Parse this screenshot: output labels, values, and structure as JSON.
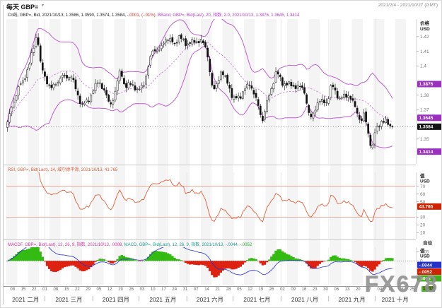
{
  "header": {
    "title": "每天 GBP=",
    "title_marker": "▾",
    "date_range": "2021/2/4 - 2021/10/27 (GMT)"
  },
  "watermark": "FX678",
  "legend_main": {
    "candle": "Cn线, GBP=, Bid, 2021/10/13, 1.3586, 1.3590, 1.3574, 1.3584,",
    "change": "-.0001, (-.01%),",
    "bband": "BBand, GBP=, Bid(Last), 20, 指数, 2.0, 2021/10/13, 1.3876, 1.3645, 1.3414"
  },
  "legend_rsi": "RSI, GBP=, Bid(Last), 14, 威尔德平滑, 2021/10/13, 43.765",
  "legend_macd": {
    "part1": "MACDF, GBP=, Bid(Last), 12, 26, 9, 指数, 2021/10/13, .0008,",
    "part2": "MACD, GBP=, Bid(Last), 12, 26, 9, 指数, 2021/10/13, -.0044,",
    "part3": "-.0052"
  },
  "axes": {
    "main": {
      "unit": [
        "价格",
        "USD"
      ],
      "ticks": [
        1.42,
        1.41,
        1.4,
        1.38,
        1.37,
        1.35
      ],
      "badges": [
        {
          "v": 1.3876,
          "label": "1.3876",
          "bg": "purple"
        },
        {
          "v": 1.3645,
          "label": "1.3645",
          "bg": "purple"
        },
        {
          "v": 1.3584,
          "label": "1.3584",
          "bg": "black"
        },
        {
          "v": 1.3414,
          "label": "1.3414",
          "bg": "purple"
        }
      ],
      "ylim": [
        1.333,
        1.432
      ],
      "last_dotted": 1.3584
    },
    "rsi": {
      "unit": [
        "值",
        "USD"
      ],
      "ticks": [
        70,
        60,
        50,
        30,
        20,
        10
      ],
      "badge": {
        "v": 43.765,
        "label": "43.765",
        "bg": "red"
      },
      "levels": [
        70,
        30
      ],
      "ylim": [
        2,
        88
      ]
    },
    "macd": {
      "unit": [
        "值",
        "USD"
      ],
      "scale_label": "自动",
      "ticks": [
        {
          "v": 0.005,
          "label": ".005"
        },
        {
          "v": 0,
          "label": "0"
        }
      ],
      "badges": [
        {
          "label": "-.0044",
          "bg": "blue"
        },
        {
          "label": "-.0052",
          "bg": "red"
        },
        {
          "label": ".0008",
          "bg": "green"
        }
      ],
      "ylim": [
        -0.0135,
        0.0075
      ]
    },
    "x": {
      "axis_days": 265,
      "first_week_day": 4,
      "week_step": 7,
      "week_labels": [
        "08",
        "15",
        "22",
        "01",
        "08",
        "15",
        "22",
        "29",
        "05",
        "12",
        "19",
        "26",
        "03",
        "10",
        "17",
        "24",
        "31",
        "07",
        "14",
        "21",
        "28",
        "05",
        "12",
        "19",
        "26",
        "02",
        "09",
        "16",
        "23",
        "30",
        "06",
        "13",
        "20",
        "27",
        "04",
        "11",
        "18",
        "25"
      ],
      "months": [
        {
          "label": "2021 二月"
        },
        {
          "label": "2021 三月"
        },
        {
          "label": "2021 四月"
        },
        {
          "label": "2021 五月"
        },
        {
          "label": "2021 六月"
        },
        {
          "label": "2021 七月"
        },
        {
          "label": "2021 八月"
        },
        {
          "label": "2021 九月"
        },
        {
          "label": "2021 十月"
        }
      ],
      "month_boundaries": [
        0,
        25,
        56,
        86,
        117,
        147,
        178,
        209,
        239,
        265
      ],
      "date_badge": "10/13"
    }
  },
  "colors": {
    "bollinger": "#bf5fd0",
    "bollinger_mid": "#d083dc",
    "candle_up": "#ffffff",
    "candle_down": "#111111",
    "rsi": "#e0603a",
    "rsi_level": "#e89580",
    "macd_pos": "#33bb11",
    "macd_neg": "#dd2211",
    "macd_line": "#2233cc",
    "badge": {
      "purple": "#9b30c0",
      "black": "#151515",
      "red": "#cf2200",
      "blue": "#2230cc",
      "green": "#3fae18"
    },
    "date_badge_bg": "#4db32a",
    "legend_candle": "#222222",
    "legend_change": "#e03020",
    "legend_bband": "#b03ec8",
    "legend_rsi": "#d85c35",
    "legend_macd_1": "#cf3a9e",
    "legend_macd_2": "#1f9e8e",
    "legend_macd_3": "#2eaa2e",
    "watermark_color": "#919191"
  },
  "chart_data": [
    {
      "type": "candlestick",
      "name": "GBP= 每天 with BBand(20, 指数, 2.0)",
      "date_start": "2021-02-04",
      "date_end": "2021-10-13",
      "last": {
        "open": 1.3586,
        "high": 1.359,
        "low": 1.3574,
        "close": 1.3584,
        "change": "-.0001",
        "change_pct": "(-.01%)"
      },
      "bollinger_last": {
        "upper": 1.3876,
        "middle": 1.3645,
        "lower": 1.3414
      },
      "ylim": [
        1.333,
        1.432
      ],
      "anchors": [
        [
          "2021-02-04",
          1.358
        ],
        [
          "2021-02-08",
          1.3735
        ],
        [
          "2021-02-12",
          1.385
        ],
        [
          "2021-02-15",
          1.39
        ],
        [
          "2021-02-19",
          1.401
        ],
        [
          "2021-02-24",
          1.423
        ],
        [
          "2021-02-26",
          1.4015
        ],
        [
          "2021-03-01",
          1.3925
        ],
        [
          "2021-03-05",
          1.384
        ],
        [
          "2021-03-09",
          1.3895
        ],
        [
          "2021-03-12",
          1.3925
        ],
        [
          "2021-03-18",
          1.393
        ],
        [
          "2021-03-25",
          1.3725
        ],
        [
          "2021-03-29",
          1.3765
        ],
        [
          "2021-04-05",
          1.3905
        ],
        [
          "2021-04-12",
          1.374
        ],
        [
          "2021-04-15",
          1.3785
        ],
        [
          "2021-04-19",
          1.399
        ],
        [
          "2021-04-22",
          1.384
        ],
        [
          "2021-04-26",
          1.389
        ],
        [
          "2021-04-30",
          1.382
        ],
        [
          "2021-05-05",
          1.39
        ],
        [
          "2021-05-10",
          1.412
        ],
        [
          "2021-05-14",
          1.4095
        ],
        [
          "2021-05-18",
          1.419
        ],
        [
          "2021-05-24",
          1.4155
        ],
        [
          "2021-05-27",
          1.4195
        ],
        [
          "2021-06-01",
          1.415
        ],
        [
          "2021-06-04",
          1.416
        ],
        [
          "2021-06-10",
          1.4175
        ],
        [
          "2021-06-14",
          1.411
        ],
        [
          "2021-06-18",
          1.381
        ],
        [
          "2021-06-23",
          1.396
        ],
        [
          "2021-06-28",
          1.388
        ],
        [
          "2021-07-01",
          1.3765
        ],
        [
          "2021-07-06",
          1.38
        ],
        [
          "2021-07-12",
          1.3885
        ],
        [
          "2021-07-16",
          1.3765
        ],
        [
          "2021-07-20",
          1.363
        ],
        [
          "2021-07-23",
          1.3745
        ],
        [
          "2021-07-29",
          1.396
        ],
        [
          "2021-08-02",
          1.3885
        ],
        [
          "2021-08-06",
          1.387
        ],
        [
          "2021-08-11",
          1.386
        ],
        [
          "2021-08-16",
          1.384
        ],
        [
          "2021-08-20",
          1.3625
        ],
        [
          "2021-08-25",
          1.3755
        ],
        [
          "2021-08-31",
          1.3755
        ],
        [
          "2021-09-03",
          1.387
        ],
        [
          "2021-09-08",
          1.3775
        ],
        [
          "2021-09-14",
          1.3805
        ],
        [
          "2021-09-17",
          1.374
        ],
        [
          "2021-09-22",
          1.362
        ],
        [
          "2021-09-24",
          1.367
        ],
        [
          "2021-09-29",
          1.3425
        ],
        [
          "2021-10-01",
          1.3545
        ],
        [
          "2021-10-05",
          1.3625
        ],
        [
          "2021-10-08",
          1.3615
        ],
        [
          "2021-10-11",
          1.359
        ],
        [
          "2021-10-13",
          1.3584
        ]
      ]
    },
    {
      "type": "line",
      "name": "RSI 14 威尔德平滑",
      "last": 43.765,
      "overbought": 70,
      "oversold": 30,
      "ylim": [
        2,
        88
      ]
    },
    {
      "type": "macd",
      "name": "MACD 12,26,9 指数",
      "last_hist": 0.0008,
      "last_macd": -0.0044,
      "last_signal": -0.0052,
      "ylim": [
        -0.0135,
        0.0075
      ]
    }
  ]
}
